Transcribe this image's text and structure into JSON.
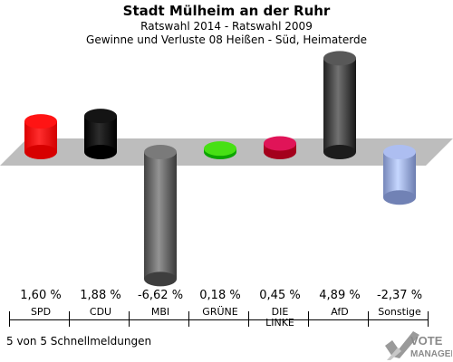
{
  "header": {
    "title": "Stadt Mülheim an der Ruhr",
    "subtitle1": "Ratswahl 2014 - Ratswahl 2009",
    "subtitle2": "Gewinne und Verluste 08 Heißen - Süd, Heimaterde"
  },
  "footer": {
    "text": "5 von 5 Schnellmeldungen"
  },
  "logo": {
    "text1": "VOTE",
    "text2": "MANAGER"
  },
  "chart_data": {
    "type": "bar",
    "categories": [
      "SPD",
      "CDU",
      "MBI",
      "GRÜNE",
      "DIE LINKE",
      "AfD",
      "Sonstige"
    ],
    "category_labels": [
      [
        "SPD"
      ],
      [
        "CDU"
      ],
      [
        "MBI"
      ],
      [
        "GRÜNE"
      ],
      [
        "DIE",
        "LINKE"
      ],
      [
        "AfD"
      ],
      [
        "Sonstige"
      ]
    ],
    "values": [
      1.6,
      1.88,
      -6.62,
      0.18,
      0.45,
      4.89,
      -2.37
    ],
    "value_labels": [
      "1,60 %",
      "1,88 %",
      "-6,62 %",
      "0,18 %",
      "0,45 %",
      "4,89 %",
      "-2,37 %"
    ],
    "colors": [
      "#ff0000",
      "#000000",
      "#666666",
      "#33cc00",
      "#cc0044",
      "#444444",
      "#99aadd"
    ],
    "title": "Stadt Mülheim an der Ruhr"
  }
}
